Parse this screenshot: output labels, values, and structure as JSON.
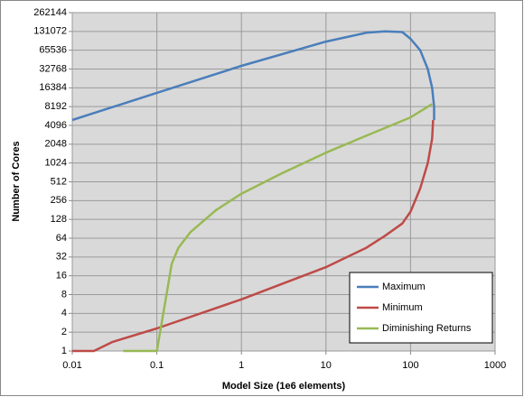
{
  "chart_data": {
    "type": "line",
    "x_label": "Model Size (1e6 elements)",
    "y_label": "Number of Cores",
    "x_log": true,
    "y_log_base": 2,
    "grid": true,
    "legend": "lower right",
    "xlim": [
      0.01,
      1000
    ],
    "xticks": [
      0.01,
      0.1,
      1,
      10,
      100,
      1000
    ],
    "ylim": [
      1,
      262144
    ],
    "yticks": [
      1,
      2,
      4,
      8,
      16,
      32,
      64,
      128,
      256,
      512,
      1024,
      2048,
      4096,
      8192,
      16384,
      32768,
      65536,
      131072,
      262144
    ],
    "series": [
      {
        "name": "Maximum",
        "color": "#4a7ebb",
        "x": [
          0.01,
          0.1,
          1,
          10,
          30,
          50,
          80,
          100,
          130,
          160,
          180,
          190,
          190
        ],
        "values": [
          5000,
          13600,
          36800,
          90000,
          125000,
          131072,
          128000,
          100000,
          65536,
          32768,
          16384,
          8192,
          5000
        ]
      },
      {
        "name": "Minimum",
        "color": "#be4b48",
        "x": [
          0.01,
          0.018,
          0.03,
          0.1,
          1,
          10,
          30,
          50,
          80,
          100,
          130,
          160,
          180,
          185
        ],
        "values": [
          1,
          1,
          1.4,
          2.3,
          6.7,
          22,
          45,
          70,
          110,
          170,
          400,
          1024,
          2500,
          5000
        ]
      },
      {
        "name": "Diminishing Returns",
        "color": "#98b954",
        "x": [
          0.04,
          0.1,
          0.13,
          0.15,
          0.18,
          0.25,
          0.5,
          1,
          3,
          10,
          30,
          100,
          180
        ],
        "values": [
          1,
          1,
          8,
          25,
          45,
          80,
          180,
          330,
          700,
          1500,
          2800,
          5500,
          9000
        ]
      }
    ]
  }
}
